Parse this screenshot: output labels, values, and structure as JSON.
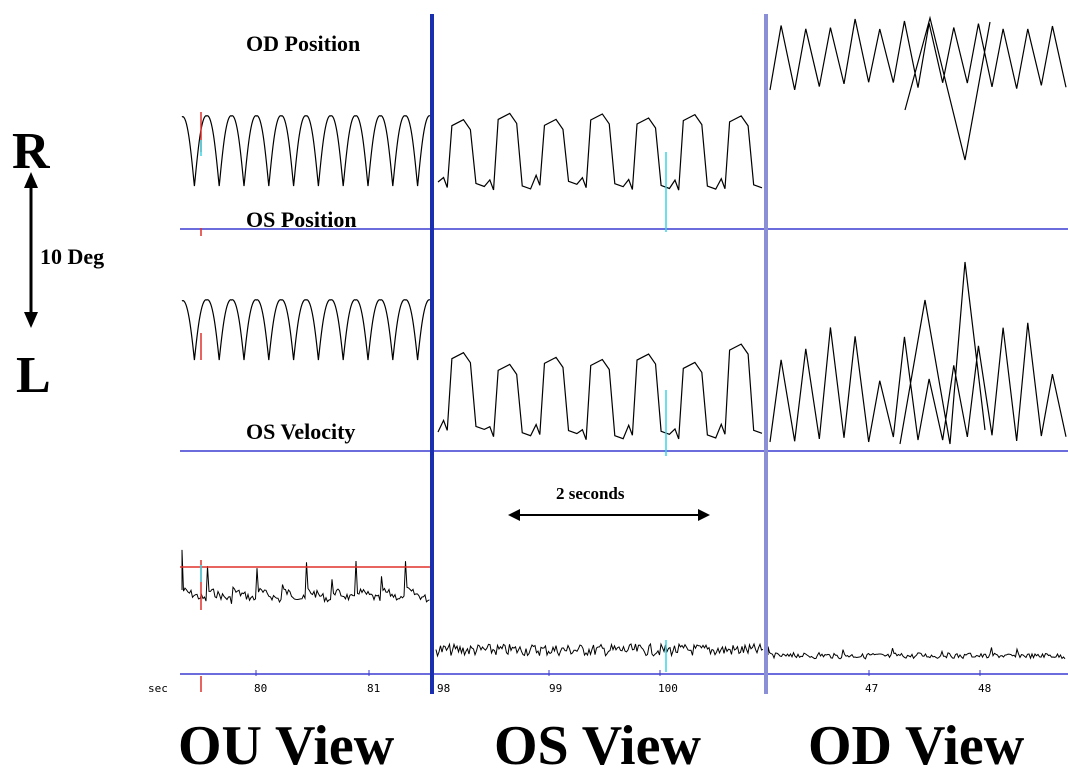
{
  "chart_data": {
    "type": "line",
    "scale": {
      "top_label": "R",
      "bottom_label": "L",
      "magnitude_label": "10 Deg"
    },
    "traces": [
      {
        "key": "od_position",
        "label": "OD Position"
      },
      {
        "key": "os_position",
        "label": "OS Position"
      },
      {
        "key": "os_velocity",
        "label": "OS Velocity"
      }
    ],
    "time_axis_label": "sec",
    "panels": [
      {
        "key": "ou",
        "title": "OU View",
        "ticks": [
          {
            "value": 80,
            "label": "80"
          },
          {
            "value": 81,
            "label": "81"
          }
        ]
      },
      {
        "key": "os",
        "title": "OS View",
        "ticks": [
          {
            "value": 98,
            "label": "98"
          },
          {
            "value": 99,
            "label": "99"
          },
          {
            "value": 100,
            "label": "100"
          }
        ]
      },
      {
        "key": "od",
        "title": "OD View",
        "ticks": [
          {
            "value": 47,
            "label": "47"
          },
          {
            "value": 48,
            "label": "48"
          }
        ]
      }
    ],
    "annotation": {
      "text": "2 seconds"
    },
    "colors": {
      "trace": "#000000",
      "baseline": "#3b3bd1",
      "divider_ou_os": "#1a2fb0",
      "divider_os_od": "#8a8fd6",
      "cursor_red": "#e0302a",
      "cursor_cyan": "#39d5e6"
    }
  }
}
